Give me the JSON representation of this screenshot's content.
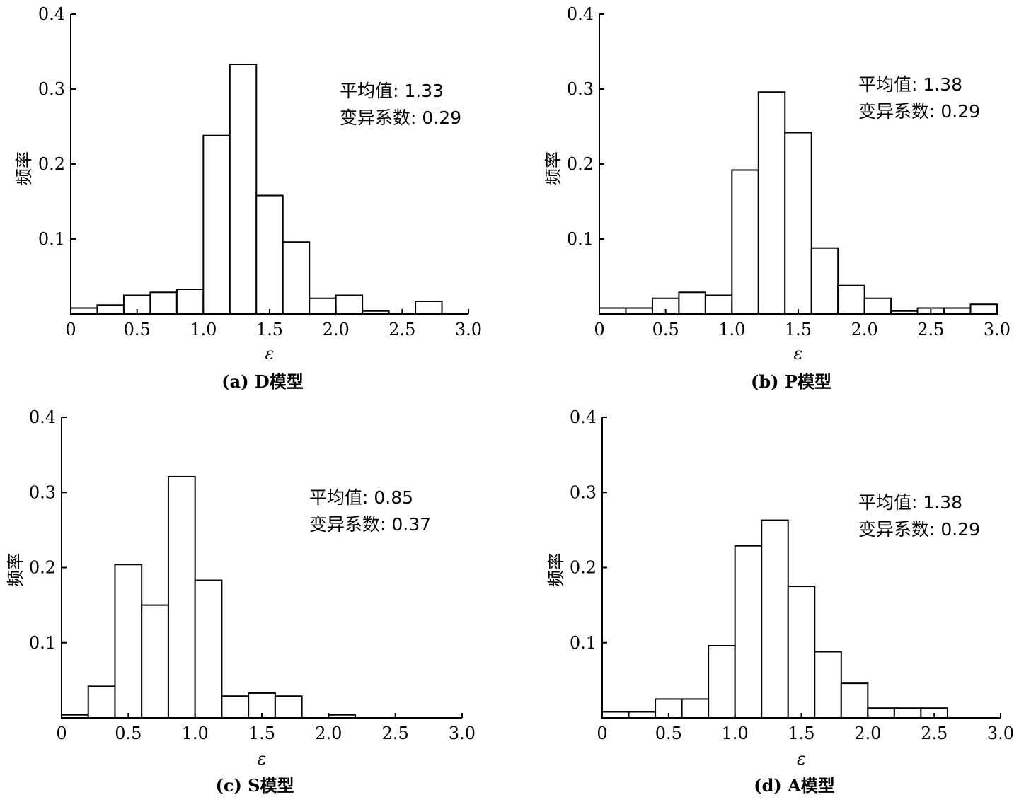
{
  "chart_data": [
    {
      "type": "bar",
      "caption": "(a) D模型",
      "xlabel": "ε",
      "ylabel": "频率",
      "xlim": [
        0,
        3.0
      ],
      "ylim": [
        0,
        0.4
      ],
      "xticks": [
        "0",
        "0.5",
        "1.0",
        "1.5",
        "2.0",
        "2.5",
        "3.0"
      ],
      "yticks": [
        "0.1",
        "0.2",
        "0.3",
        "0.4"
      ],
      "bin_width": 0.2,
      "bin_starts": [
        0,
        0.2,
        0.4,
        0.6,
        0.8,
        1.0,
        1.2,
        1.4,
        1.6,
        1.8,
        2.0,
        2.2,
        2.4,
        2.6
      ],
      "values": [
        0.008,
        0.012,
        0.025,
        0.029,
        0.033,
        0.238,
        0.333,
        0.158,
        0.096,
        0.021,
        0.025,
        0.004,
        0.0,
        0.017
      ],
      "stats": [
        "平均值: 1.33",
        "变异系数: 0.29"
      ]
    },
    {
      "type": "bar",
      "caption": "(b) P模型",
      "xlabel": "ε",
      "ylabel": "频率",
      "xlim": [
        0,
        3.0
      ],
      "ylim": [
        0,
        0.4
      ],
      "xticks": [
        "0",
        "0.5",
        "1.0",
        "1.5",
        "2.0",
        "2.5",
        "3.0"
      ],
      "yticks": [
        "0.1",
        "0.2",
        "0.3",
        "0.4"
      ],
      "bin_width": 0.2,
      "bin_starts": [
        0,
        0.2,
        0.4,
        0.6,
        0.8,
        1.0,
        1.2,
        1.4,
        1.6,
        1.8,
        2.0,
        2.2,
        2.4,
        2.6,
        2.8
      ],
      "values": [
        0.008,
        0.008,
        0.021,
        0.029,
        0.025,
        0.192,
        0.296,
        0.242,
        0.088,
        0.038,
        0.021,
        0.004,
        0.008,
        0.008,
        0.013
      ],
      "stats": [
        "平均值: 1.38",
        "变异系数: 0.29"
      ]
    },
    {
      "type": "bar",
      "caption": "(c) S模型",
      "xlabel": "ε",
      "ylabel": "频率",
      "xlim": [
        0,
        3.0
      ],
      "ylim": [
        0,
        0.4
      ],
      "xticks": [
        "0",
        "0.5",
        "1.0",
        "1.5",
        "2.0",
        "2.5",
        "3.0"
      ],
      "yticks": [
        "0.1",
        "0.2",
        "0.3",
        "0.4"
      ],
      "bin_width": 0.2,
      "bin_starts": [
        0,
        0.2,
        0.4,
        0.6,
        0.8,
        1.0,
        1.2,
        1.4,
        1.6,
        1.8,
        2.0
      ],
      "values": [
        0.004,
        0.042,
        0.204,
        0.15,
        0.321,
        0.183,
        0.029,
        0.033,
        0.029,
        0.0,
        0.004
      ],
      "stats": [
        "平均值: 0.85",
        "变异系数: 0.37"
      ]
    },
    {
      "type": "bar",
      "caption": "(d) A模型",
      "xlabel": "ε",
      "ylabel": "频率",
      "xlim": [
        0,
        3.0
      ],
      "ylim": [
        0,
        0.4
      ],
      "xticks": [
        "0",
        "0.5",
        "1.0",
        "1.5",
        "2.0",
        "2.5",
        "3.0"
      ],
      "yticks": [
        "0.1",
        "0.2",
        "0.3",
        "0.4"
      ],
      "bin_width": 0.2,
      "bin_starts": [
        0,
        0.2,
        0.4,
        0.6,
        0.8,
        1.0,
        1.2,
        1.4,
        1.6,
        1.8,
        2.0,
        2.2,
        2.4
      ],
      "values": [
        0.008,
        0.008,
        0.025,
        0.025,
        0.096,
        0.229,
        0.263,
        0.175,
        0.088,
        0.046,
        0.013,
        0.013,
        0.013
      ],
      "stats": [
        "平均值: 1.38",
        "变异系数: 0.29"
      ]
    }
  ]
}
